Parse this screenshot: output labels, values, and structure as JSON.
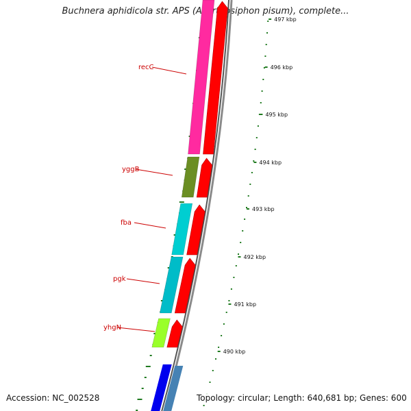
{
  "title": "Buchnera aphidicola str. APS (Acyrthosiphon pisum), complete...",
  "footer": {
    "accession": "Accession: NC_002528",
    "summary": "Topology: circular; Length: 640,681 bp; Genes: 600"
  },
  "colors": {
    "backbone": "#8a8a8a",
    "strand_cds": "#ff0000",
    "label": "#cc0000",
    "dots": "#1f7a1f",
    "recC": "#ff2aa0",
    "yggB": "#6b8e23",
    "fba": "#00ced1",
    "pgk": "#00bcc8",
    "yhgN": "#9aff2a",
    "blue_1": "#0000ee",
    "blue_2": "#4682b4"
  },
  "genes": [
    {
      "name": "recC",
      "color_key": "recC"
    },
    {
      "name": "yggB",
      "color_key": "yggB"
    },
    {
      "name": "fba",
      "color_key": "fba"
    },
    {
      "name": "pgk",
      "color_key": "pgk"
    },
    {
      "name": "yhgN",
      "color_key": "yhgN"
    }
  ],
  "tick_labels": [
    "497 kbp",
    "496 kbp",
    "495 kbp",
    "494 kbp",
    "493 kbp",
    "492 kbp",
    "491 kbp",
    "490 kbp"
  ]
}
